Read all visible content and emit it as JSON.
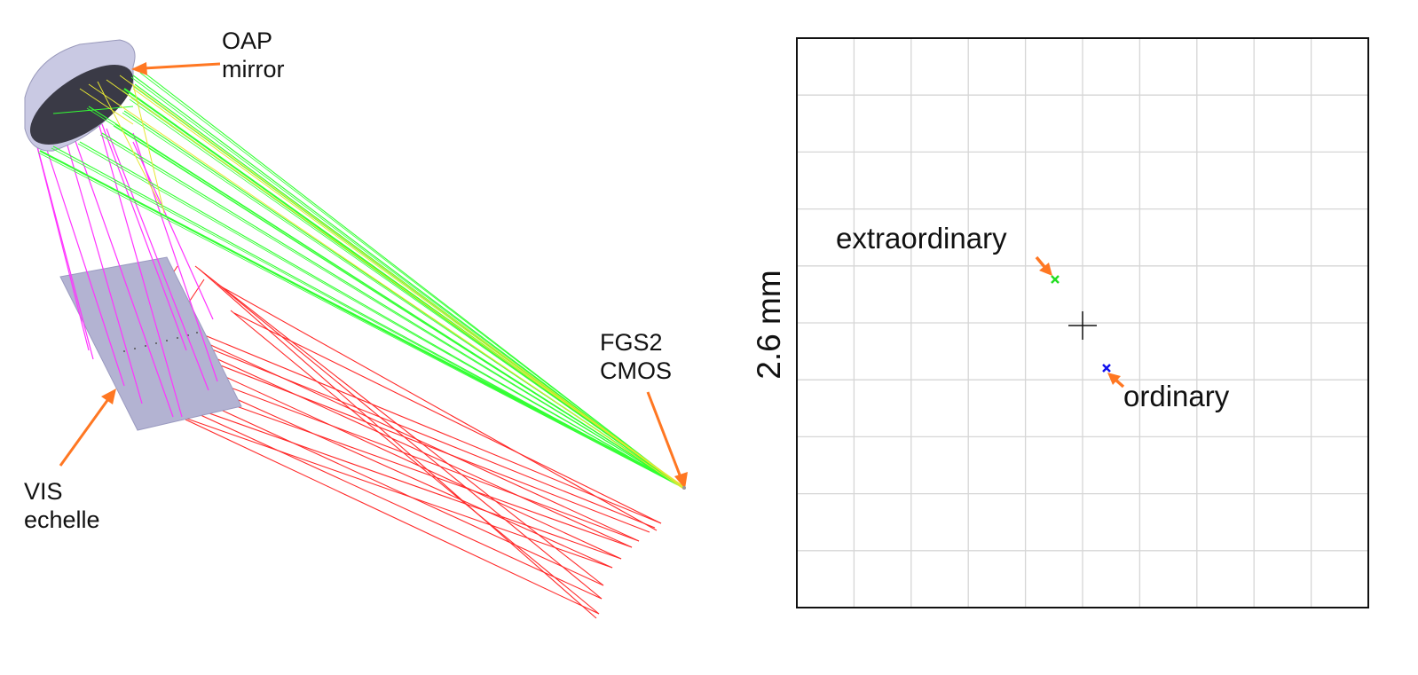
{
  "optics_view": {
    "labels": {
      "oap_line1": "OAP",
      "oap_line2": "mirror",
      "fgs_line1": "FGS2",
      "fgs_line2": "CMOS",
      "vis_line1": "VIS",
      "vis_line2": "echelle"
    },
    "ray_colors": {
      "red": "#ff2a2a",
      "magenta": "#ff33ff",
      "green": "#33ff33",
      "yellow": "#e6e633"
    },
    "component_colors": {
      "mirror_body": "#c9c9e3",
      "mirror_face": "#3a3a46",
      "echelle": "#b3b3d2"
    },
    "annotation_color": "#ff7722"
  },
  "spot_diagram": {
    "axis_label": "2.6 mm",
    "spots": [
      {
        "label": "extraordinary",
        "color": "#22dd22"
      },
      {
        "label": "ordinary",
        "color": "#1111ee"
      }
    ],
    "grid_color": "#d6d6d6"
  }
}
